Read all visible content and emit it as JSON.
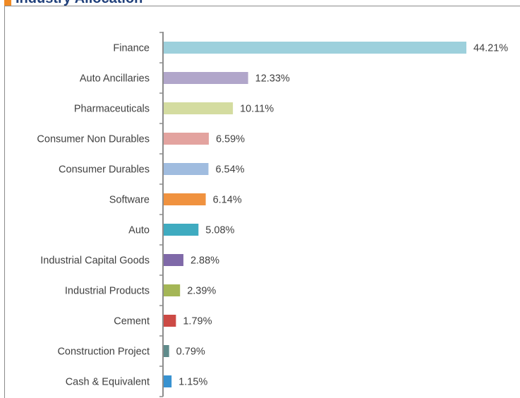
{
  "chart_data": {
    "type": "bar",
    "orientation": "horizontal",
    "title": "Industry Allocation",
    "categories": [
      "Finance",
      "Auto Ancillaries",
      "Pharmaceuticals",
      "Consumer Non Durables",
      "Consumer Durables",
      "Software",
      "Auto",
      "Industrial Capital Goods",
      "Industrial Products",
      "Cement",
      "Construction Project",
      "Cash & Equivalent"
    ],
    "values": [
      44.21,
      12.33,
      10.11,
      6.59,
      6.54,
      6.14,
      5.08,
      2.88,
      2.39,
      1.79,
      0.79,
      1.15
    ],
    "value_labels": [
      "44.21%",
      "12.33%",
      "10.11%",
      "6.59%",
      "6.54%",
      "6.14%",
      "5.08%",
      "2.88%",
      "2.39%",
      "1.79%",
      "0.79%",
      "1.15%"
    ],
    "colors": [
      "#9dd0dc",
      "#b1a6ca",
      "#d4dca0",
      "#e3a39f",
      "#a0bcdf",
      "#f0923f",
      "#3fabc0",
      "#7f69a8",
      "#a4b656",
      "#cc4a45",
      "#5f8b8b",
      "#3892d0"
    ]
  }
}
